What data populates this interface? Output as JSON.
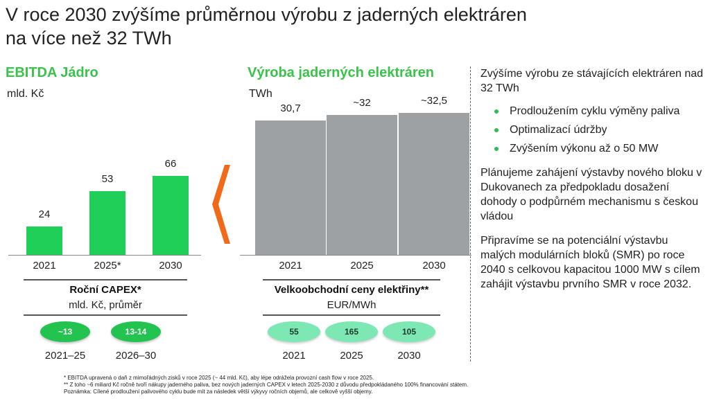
{
  "title_line1": "V roce 2030 zvýšíme průměrnou výrobu z jaderných elektráren",
  "title_line2": "na více než 32 TWh",
  "colors": {
    "accent_green": "#1fcf57",
    "bar_gray": "#9ea1a4",
    "chevron_orange": "#f06a1a",
    "pill_mint": "#7ee8b4"
  },
  "chart_data": [
    {
      "type": "bar",
      "title": "EBITDA Jádro",
      "ylabel": "mld. Kč",
      "categories": [
        "2021",
        "2025*",
        "2030"
      ],
      "values": [
        24,
        53,
        66
      ],
      "value_labels": [
        "24",
        "53",
        "66"
      ],
      "ylim": [
        0,
        90
      ],
      "grid": false
    },
    {
      "type": "bar",
      "title": "Výroba jaderných elektráren",
      "ylabel": "TWh",
      "categories": [
        "2021",
        "2025",
        "2030"
      ],
      "values": [
        30.7,
        32,
        32.5
      ],
      "value_labels": [
        "30,7",
        "~32",
        "~32,5"
      ],
      "ylim": [
        0,
        37
      ],
      "grid": false
    }
  ],
  "capex": {
    "title": "Roční CAPEX*",
    "unit": "mld. Kč, průměr",
    "items": [
      {
        "value": "~13",
        "period": "2021–25"
      },
      {
        "value": "13-14",
        "period": "2026–30"
      }
    ]
  },
  "prices": {
    "title": "Velkoobchodní ceny elektřiny**",
    "unit": "EUR/MWh",
    "items": [
      {
        "value": "55",
        "year": "2021"
      },
      {
        "value": "165",
        "year": "2025"
      },
      {
        "value": "105",
        "year": "2030"
      }
    ]
  },
  "right_panel": {
    "intro": "Zvýšíme výrobu ze stávajících elektráren nad 32 TWh",
    "bullets": [
      "Prodloužením cyklu výměny paliva",
      "Optimalizací údržby",
      "Zvýšením výkonu až o 50 MW"
    ],
    "p1": "Plánujeme zahájení výstavby nového bloku v Dukovanech za předpokladu dosažení dohody o podpůrném mechanismu s českou vládou",
    "p2": "Připravíme se na potenciální výstavbu malých modulárních bloků (SMR) po roce 2040 s celkovou kapacitou 1000 MW s cílem zahájit výstavbu prvního SMR v roce 2032."
  },
  "footnotes": [
    "*   EBITDA upravená o daň z mimořádných zisků v roce 2025 (~ 44 mld. Kč), aby lépe odrážela provozní cash flow v roce 2025.",
    "**  Z toho ~6 miliard Kč ročně tvoří nákupy jaderného paliva, bez nových jaderných CAPEX v letech 2025-2030 z důvodu předpokládaného 100% financování státem.",
    "Poznámka: Cílené prodloužení palivového cyklu bude mít za následek větší výkyvy ročních objemů, ale celkově vyšší objemy."
  ]
}
